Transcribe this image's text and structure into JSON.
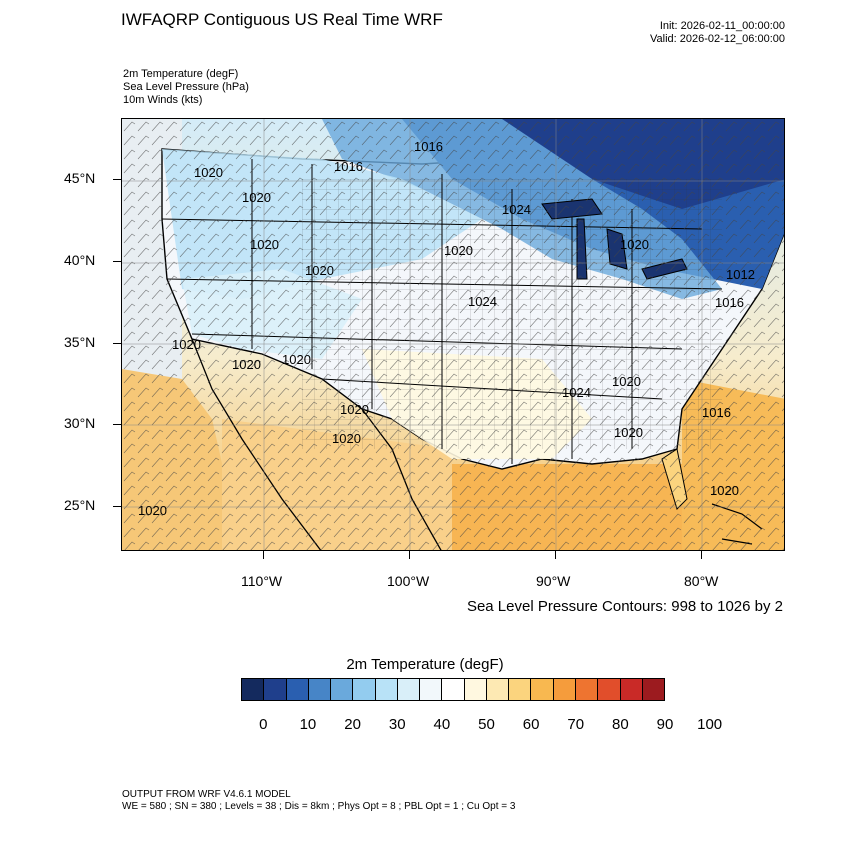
{
  "header": {
    "title": "IWFAQRP Contiguous US Real Time WRF",
    "init": "Init: 2026-02-11_00:00:00",
    "valid": "Valid: 2026-02-12_06:00:00"
  },
  "fields": {
    "field1": "2m Temperature   (degF)",
    "field2": "Sea Level Pressure   (hPa)",
    "field3": "10m Winds   (kts)"
  },
  "axes": {
    "lat_labels": [
      "45°N",
      "40°N",
      "35°N",
      "30°N",
      "25°N"
    ],
    "lon_labels": [
      "110°W",
      "100°W",
      "90°W",
      "80°W"
    ]
  },
  "contours": {
    "note": "Sea Level Pressure Contours: 998 to 1026 by 2",
    "isobar_labels": [
      "1016",
      "1016",
      "1020",
      "1020",
      "1020",
      "1020",
      "1020",
      "1020",
      "1020",
      "1020",
      "1020",
      "1024",
      "1024",
      "1024",
      "1020",
      "1020",
      "1020",
      "1020",
      "1016",
      "1020",
      "1020",
      "1012",
      "1016"
    ]
  },
  "colorbar": {
    "title": "2m Temperature  (degF)",
    "labels": [
      "0",
      "10",
      "20",
      "30",
      "40",
      "50",
      "60",
      "70",
      "80",
      "90",
      "100"
    ],
    "colors": [
      "#142a5e",
      "#1f3f8c",
      "#2a5fb0",
      "#4785c7",
      "#6aa9dc",
      "#93ccef",
      "#b8e2f7",
      "#d9eff9",
      "#f2f8fb",
      "#ffffff",
      "#fff8e0",
      "#fde9b3",
      "#fbd47e",
      "#f8b850",
      "#f59c3c",
      "#ee7430",
      "#e14e2b",
      "#c92a27",
      "#9c1b1f"
    ]
  },
  "footer": {
    "line1": "OUTPUT FROM WRF V4.6.1 MODEL",
    "line2": "WE = 580 ; SN = 380 ; Levels = 38 ; Dis = 8km ; Phys Opt = 8 ; PBL Opt = 1 ; Cu Opt = 3"
  }
}
